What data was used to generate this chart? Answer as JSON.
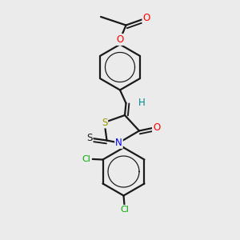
{
  "bg_color": "#ebebeb",
  "bond_color": "#1a1a1a",
  "bond_width": 1.6,
  "dbo": 0.012,
  "fig_size": [
    3.0,
    3.0
  ],
  "dpi": 100,
  "colors": {
    "O": "#ff0000",
    "N": "#0000ee",
    "S_yellow": "#999900",
    "S_black": "#1a1a1a",
    "Cl": "#00aa00",
    "H": "#008888",
    "C": "#1a1a1a"
  }
}
